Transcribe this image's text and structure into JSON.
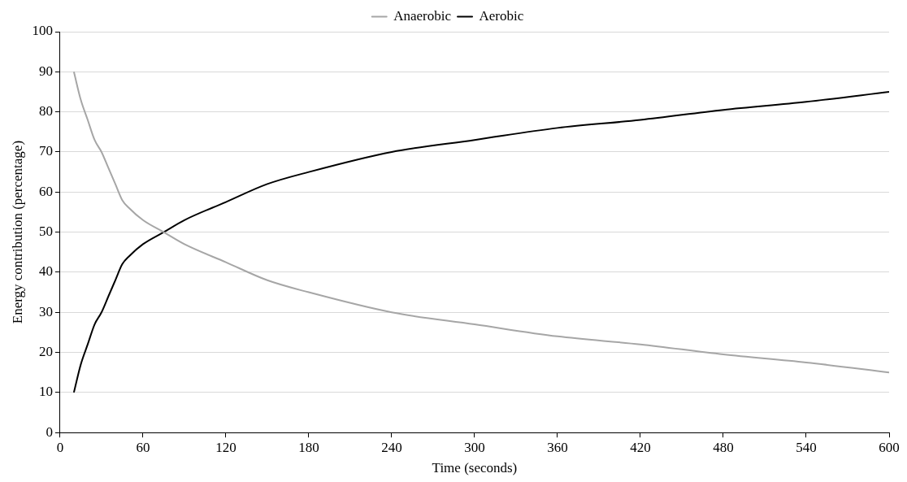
{
  "chart_data": {
    "type": "line",
    "xlabel": "Time (seconds)",
    "ylabel": "Energy contribution (percentage)",
    "x": [
      10,
      15,
      20,
      25,
      30,
      35,
      40,
      45,
      50,
      60,
      75,
      90,
      120,
      150,
      180,
      240,
      300,
      360,
      420,
      480,
      540,
      600
    ],
    "series": [
      {
        "name": "Anaerobic",
        "color": "#a6a6a6",
        "values": [
          90,
          83,
          78,
          73,
          70,
          66,
          62,
          58,
          56,
          53,
          50,
          47,
          42.5,
          38,
          35,
          30,
          27,
          24,
          22,
          19.5,
          17.5,
          15
        ]
      },
      {
        "name": "Aerobic",
        "color": "#000000",
        "values": [
          10,
          17,
          22,
          27,
          30,
          34,
          38,
          42,
          44,
          47,
          50,
          53,
          57.5,
          62,
          65,
          70,
          73,
          76,
          78,
          80.5,
          82.5,
          85
        ]
      }
    ],
    "xlim": [
      0,
      600
    ],
    "xticks": [
      0,
      60,
      120,
      180,
      240,
      300,
      360,
      420,
      480,
      540,
      600
    ],
    "ylim": [
      0,
      100
    ],
    "yticks": [
      0,
      10,
      20,
      30,
      40,
      50,
      60,
      70,
      80,
      90,
      100
    ],
    "grid": "y",
    "legend": "top",
    "marker": "none",
    "line_style": "solid"
  }
}
